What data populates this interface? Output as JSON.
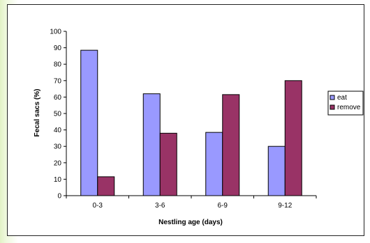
{
  "chart_data": {
    "type": "bar",
    "title": "",
    "xlabel": "Nestling age (days)",
    "ylabel": "Fecal sacs (%)",
    "categories": [
      "0-3",
      "3-6",
      "6-9",
      "9-12"
    ],
    "ylim": [
      0,
      100
    ],
    "yticks": [
      0,
      10,
      20,
      30,
      40,
      50,
      60,
      70,
      80,
      90,
      100
    ],
    "grid": false,
    "legend_position": "right",
    "series": [
      {
        "name": "eat",
        "color": "#9999ff",
        "values": [
          88.5,
          62,
          38.5,
          30
        ]
      },
      {
        "name": "remove",
        "color": "#993366",
        "values": [
          11.5,
          38,
          61.5,
          70
        ]
      }
    ]
  }
}
